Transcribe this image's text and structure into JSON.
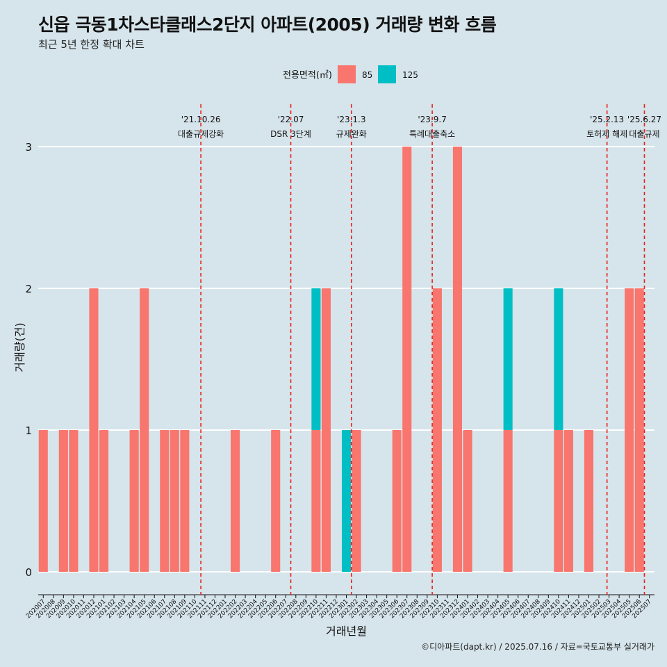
{
  "title": "신읍 극동1차스타클래스2단지 아파트(2005) 거래량 변화 흐름",
  "subtitle": "최근 5년 한정 확대 차트",
  "caption": "©디아파트(dapt.kr) / 2025.07.16 / 자료=국토교통부 실거래가",
  "chart_data": {
    "type": "bar",
    "stacked": true,
    "xlabel": "거래년월",
    "ylabel": "거래량(건)",
    "ylim": [
      0,
      3
    ],
    "yticks": [
      0,
      1,
      2,
      3
    ],
    "grid": true,
    "legend": {
      "title": "전용면적(㎡)",
      "position": "top"
    },
    "categories": [
      "202007",
      "202008",
      "202009",
      "202010",
      "202011",
      "202012",
      "202101",
      "202102",
      "202103",
      "202104",
      "202105",
      "202106",
      "202107",
      "202108",
      "202109",
      "202110",
      "202111",
      "202112",
      "202201",
      "202202",
      "202203",
      "202204",
      "202205",
      "202206",
      "202207",
      "202208",
      "202209",
      "202210",
      "202211",
      "202212",
      "202301",
      "202302",
      "202303",
      "202304",
      "202305",
      "202306",
      "202307",
      "202308",
      "202309",
      "202310",
      "202311",
      "202312",
      "202401",
      "202402",
      "202403",
      "202404",
      "202405",
      "202406",
      "202407",
      "202408",
      "202409",
      "202410",
      "202411",
      "202412",
      "202501",
      "202502",
      "202503",
      "202504",
      "202505",
      "202506",
      "202507"
    ],
    "series": [
      {
        "name": "85",
        "color": "#f8766d",
        "values": [
          1,
          0,
          1,
          1,
          0,
          2,
          1,
          0,
          0,
          1,
          2,
          0,
          1,
          1,
          1,
          0,
          0,
          0,
          0,
          1,
          0,
          0,
          0,
          1,
          0,
          0,
          0,
          1,
          2,
          0,
          0,
          1,
          0,
          0,
          0,
          1,
          3,
          0,
          0,
          2,
          0,
          3,
          1,
          0,
          0,
          0,
          1,
          0,
          0,
          0,
          0,
          1,
          1,
          0,
          1,
          0,
          0,
          0,
          2,
          2,
          0
        ]
      },
      {
        "name": "125",
        "color": "#00bfc4",
        "values": [
          0,
          0,
          0,
          0,
          0,
          0,
          0,
          0,
          0,
          0,
          0,
          0,
          0,
          0,
          0,
          0,
          0,
          0,
          0,
          0,
          0,
          0,
          0,
          0,
          0,
          0,
          0,
          1,
          0,
          0,
          1,
          0,
          0,
          0,
          0,
          0,
          0,
          0,
          0,
          0,
          0,
          0,
          0,
          0,
          0,
          0,
          1,
          0,
          0,
          0,
          0,
          1,
          0,
          0,
          0,
          0,
          0,
          0,
          0,
          0,
          0
        ]
      }
    ],
    "events": [
      {
        "date": "'21.10.26",
        "label": "대출규제강화",
        "x": 15.6
      },
      {
        "date": "'22.07",
        "label": "DSR 3단계",
        "x": 24.5
      },
      {
        "date": "'23.1.3",
        "label": "규제완화",
        "x": 30.5
      },
      {
        "date": "'23.9.7",
        "label": "특례대출축소",
        "x": 38.5
      },
      {
        "date": "'25.2.13",
        "label": "토허제 해제",
        "x": 55.8
      },
      {
        "date": "'25.6.27",
        "label": "대출규제",
        "x": 59.5
      }
    ]
  }
}
